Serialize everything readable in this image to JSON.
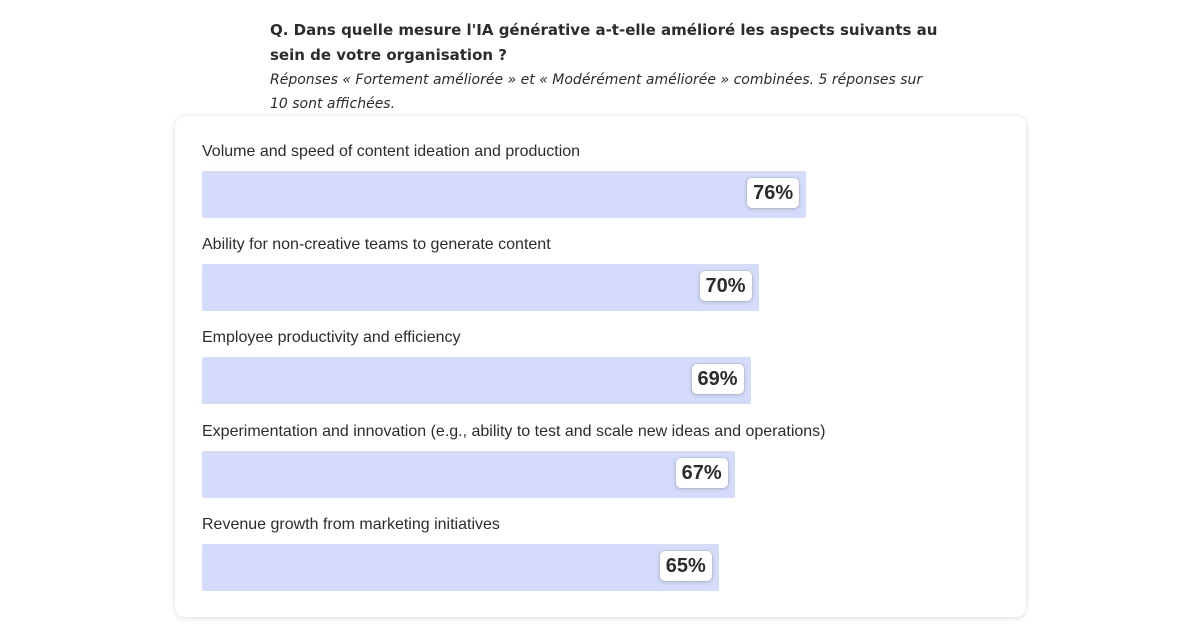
{
  "question": "Q. Dans quelle mesure l'IA générative a-t-elle amélioré les aspects suivants au sein de votre organisation ?",
  "note": "Réponses « Fortement améliorée » et « Modérément améliorée » combinées. 5 réponses sur 10 sont affichées.",
  "colors": {
    "bar": "#d5dcfb",
    "text": "#2c2c2c",
    "pill": "#ffffff"
  },
  "chart_data": {
    "type": "bar",
    "orientation": "horizontal",
    "title": "",
    "unit": "%",
    "xlim": [
      0,
      100
    ],
    "grid": false,
    "legend": "none",
    "categories": [
      "Volume and speed of content ideation and production",
      "Ability for non-creative teams to generate content",
      "Employee productivity and efficiency",
      "Experimentation and innovation (e.g., ability to test and scale new ideas and operations)",
      "Revenue growth from marketing initiatives"
    ],
    "values": [
      76,
      70,
      69,
      67,
      65
    ],
    "value_labels": [
      "76%",
      "70%",
      "69%",
      "67%",
      "65%"
    ]
  }
}
